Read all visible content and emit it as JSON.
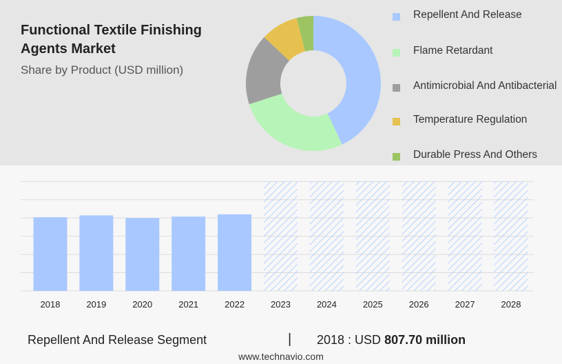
{
  "header": {
    "title": "Functional Textile Finishing Agents Market",
    "subtitle": "Share by Product (USD million)"
  },
  "colors": {
    "repellent": "#a8c8ff",
    "flame": "#b7f4b7",
    "antimicrobial": "#9e9e9e",
    "temperature": "#e6c14f",
    "durable": "#9dc463",
    "bar": "#a8c8ff",
    "forecast_hatch": "#a8c8ff"
  },
  "footer": {
    "segment": "Repellent And Release Segment",
    "separator": "|",
    "year_label": "2018 : USD",
    "value": "807.70 million"
  },
  "source": "www.technavio.com",
  "chart_data": [
    {
      "type": "pie",
      "title": "",
      "donut": true,
      "legend_position": "right",
      "series": [
        {
          "name": "Repellent And Release",
          "value": 43
        },
        {
          "name": "Flame Retardant",
          "value": 27
        },
        {
          "name": "Antimicrobial And Antibacterial",
          "value": 17
        },
        {
          "name": "Temperature Regulation",
          "value": 9
        },
        {
          "name": "Durable Press And Others",
          "value": 4
        }
      ]
    },
    {
      "type": "bar",
      "title": "",
      "categories": [
        "2018",
        "2019",
        "2020",
        "2021",
        "2022",
        "2023",
        "2024",
        "2025",
        "2026",
        "2027",
        "2028"
      ],
      "values": [
        807.7,
        828,
        799,
        815,
        840,
        null,
        null,
        null,
        null,
        null,
        null
      ],
      "forecast_categories": [
        "2023",
        "2024",
        "2025",
        "2026",
        "2027",
        "2028"
      ],
      "forecast_style": "hatched",
      "ylim": [
        0,
        1300
      ],
      "grid": true,
      "xlabel": "",
      "ylabel": ""
    }
  ]
}
